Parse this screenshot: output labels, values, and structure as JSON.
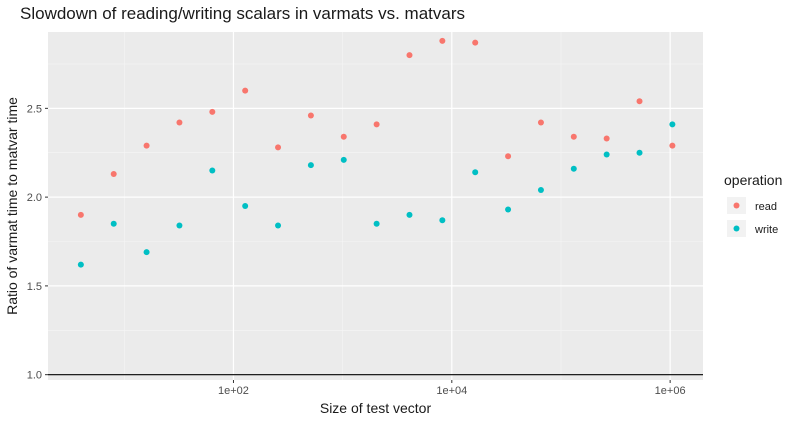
{
  "chart_data": {
    "type": "scatter",
    "title": "Slowdown of reading/writing scalars in varmats vs. matvars",
    "xlabel": "Size of test vector",
    "ylabel": "Ratio of varmat time to matvar time",
    "x_scale": "log10",
    "xlim": [
      2,
      2000000
    ],
    "ylim": [
      0.97,
      2.93
    ],
    "x_ticks": [
      100,
      10000,
      1000000
    ],
    "x_tick_labels": [
      "1e+02",
      "1e+04",
      "1e+06"
    ],
    "y_ticks": [
      1.0,
      1.5,
      2.0,
      2.5
    ],
    "y_tick_labels": [
      "1.0",
      "1.5",
      "2.0",
      "2.5"
    ],
    "hline": 1.0,
    "grid": true,
    "legend_position": "right",
    "legend_title": "operation",
    "series": [
      {
        "name": "read",
        "color": "#F8766D",
        "points": [
          [
            4,
            1.9
          ],
          [
            8,
            2.13
          ],
          [
            16,
            2.29
          ],
          [
            32,
            2.42
          ],
          [
            64,
            2.48
          ],
          [
            128,
            2.6
          ],
          [
            256,
            2.28
          ],
          [
            512,
            2.46
          ],
          [
            1024,
            2.34
          ],
          [
            2048,
            2.41
          ],
          [
            4096,
            2.8
          ],
          [
            8192,
            2.88
          ],
          [
            16384,
            2.87
          ],
          [
            32768,
            2.23
          ],
          [
            65536,
            2.42
          ],
          [
            131072,
            2.34
          ],
          [
            262144,
            2.33
          ],
          [
            524288,
            2.54
          ],
          [
            1048576,
            2.29
          ]
        ]
      },
      {
        "name": "write",
        "color": "#00BFC4",
        "points": [
          [
            4,
            1.62
          ],
          [
            8,
            1.85
          ],
          [
            16,
            1.69
          ],
          [
            32,
            1.84
          ],
          [
            64,
            2.15
          ],
          [
            128,
            1.95
          ],
          [
            256,
            1.84
          ],
          [
            512,
            2.18
          ],
          [
            1024,
            2.21
          ],
          [
            2048,
            1.85
          ],
          [
            4096,
            1.9
          ],
          [
            8192,
            1.87
          ],
          [
            16384,
            2.14
          ],
          [
            32768,
            1.93
          ],
          [
            65536,
            2.04
          ],
          [
            131072,
            2.16
          ],
          [
            262144,
            2.24
          ],
          [
            524288,
            2.25
          ],
          [
            1048576,
            2.41
          ]
        ]
      }
    ]
  }
}
